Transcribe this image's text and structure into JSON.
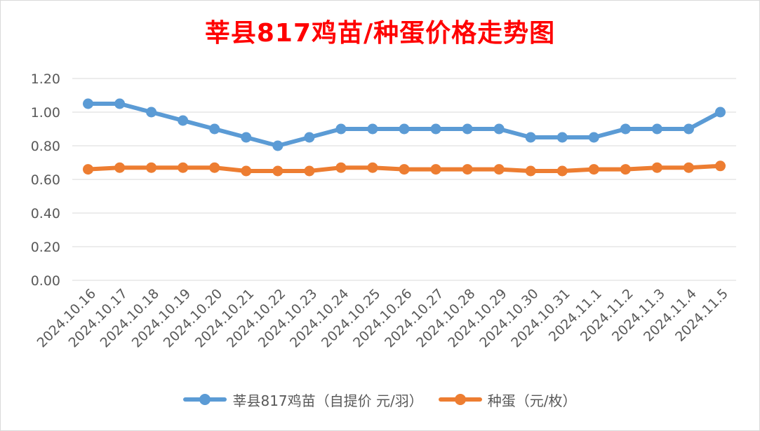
{
  "chart_data": {
    "type": "line",
    "title": "莘县817鸡苗/种蛋价格走势图",
    "categories": [
      "2024.10.16",
      "2024.10.17",
      "2024.10.18",
      "2024.10.19",
      "2024.10.20",
      "2024.10.21",
      "2024.10.22",
      "2024.10.23",
      "2024.10.24",
      "2024.10.25",
      "2024.10.26",
      "2024.10.27",
      "2024.10.28",
      "2024.10.29",
      "2024.10.30",
      "2024.10.31",
      "2024.11.1",
      "2024.11.2",
      "2024.11.3",
      "2024.11.4",
      "2024.11.5"
    ],
    "series": [
      {
        "name": "莘县817鸡苗（自提价 元/羽）",
        "color": "#5b9bd5",
        "values": [
          1.05,
          1.05,
          1.0,
          0.95,
          0.9,
          0.85,
          0.8,
          0.85,
          0.9,
          0.9,
          0.9,
          0.9,
          0.9,
          0.9,
          0.85,
          0.85,
          0.85,
          0.9,
          0.9,
          0.9,
          1.0
        ]
      },
      {
        "name": "种蛋（元/枚）",
        "color": "#ed7d31",
        "values": [
          0.66,
          0.67,
          0.67,
          0.67,
          0.67,
          0.65,
          0.65,
          0.65,
          0.67,
          0.67,
          0.66,
          0.66,
          0.66,
          0.66,
          0.65,
          0.65,
          0.66,
          0.66,
          0.67,
          0.67,
          0.68
        ]
      }
    ],
    "yticks": [
      "0.00",
      "0.20",
      "0.40",
      "0.60",
      "0.80",
      "1.00",
      "1.20"
    ],
    "ylim": [
      0,
      1.2
    ],
    "grid": true,
    "legend_position": "bottom"
  }
}
